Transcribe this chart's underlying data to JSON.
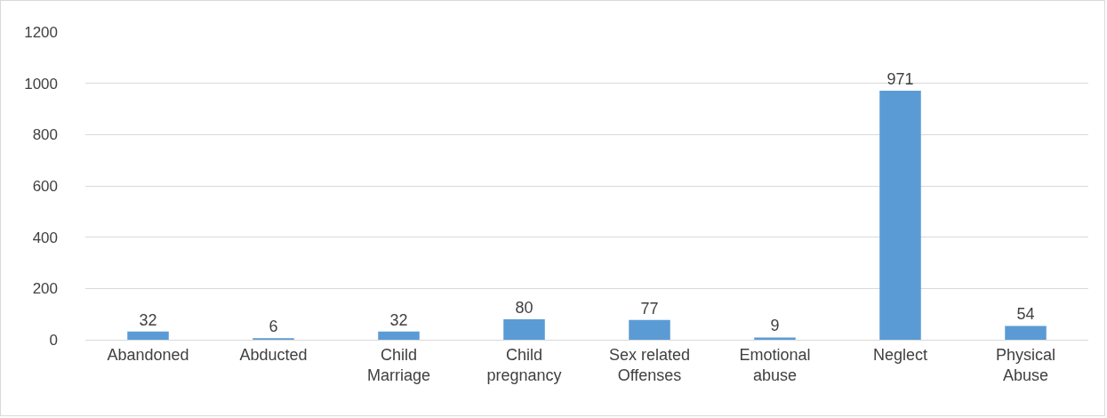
{
  "chart_data": {
    "type": "bar",
    "categories": [
      "Abandoned",
      "Abducted",
      "Child Marriage",
      "Child pregnancy",
      "Sex related Offenses",
      "Emotional abuse",
      "Neglect",
      "Physical Abuse"
    ],
    "values": [
      32,
      6,
      32,
      80,
      77,
      9,
      971,
      54
    ],
    "color": "#5b9bd5",
    "ylim": [
      0,
      1200
    ],
    "yticks": [
      0,
      200,
      400,
      600,
      800,
      1000,
      1200
    ],
    "grid": "y",
    "data_labels": true
  }
}
